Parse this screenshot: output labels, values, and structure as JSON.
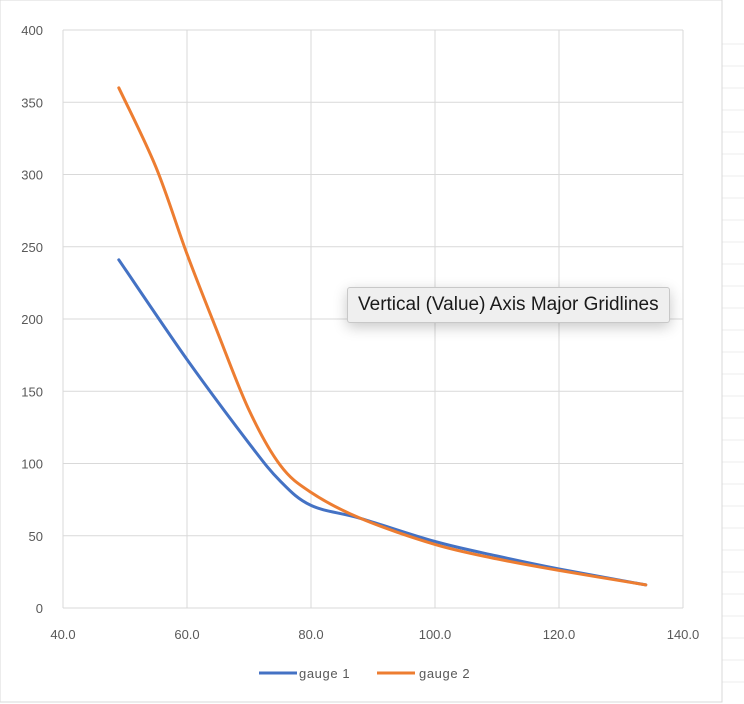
{
  "colors": {
    "series1": "#4472C4",
    "series2": "#ED7D31",
    "gridline": "#d9d9d9",
    "axis_text": "#595959"
  },
  "chart_data": {
    "type": "line",
    "title": "",
    "xlabel": "",
    "ylabel": "",
    "xlim": [
      40,
      140
    ],
    "ylim": [
      0,
      400
    ],
    "x_ticks": [
      40,
      60,
      80,
      100,
      120,
      140
    ],
    "x_tick_labels": [
      "40.0",
      "60.0",
      "80.0",
      "100.0",
      "120.0",
      "140.0"
    ],
    "y_ticks": [
      0,
      50,
      100,
      150,
      200,
      250,
      300,
      350,
      400
    ],
    "y_tick_labels": [
      "0",
      "50",
      "100",
      "150",
      "200",
      "250",
      "300",
      "350",
      "400"
    ],
    "grid": true,
    "legend_position": "bottom",
    "series": [
      {
        "name": "gauge 1",
        "color": "#4472C4",
        "x": [
          49,
          60,
          70,
          75,
          80,
          88,
          100,
          110,
          120,
          134
        ],
        "y": [
          241,
          172,
          114,
          88,
          71,
          62,
          46,
          36,
          27,
          16
        ]
      },
      {
        "name": "gauge 2",
        "color": "#ED7D31",
        "x": [
          49,
          55,
          60,
          65,
          70,
          75,
          80,
          88,
          100,
          110,
          120,
          134
        ],
        "y": [
          360,
          305,
          245,
          190,
          137,
          99,
          80,
          62,
          44,
          34,
          26,
          16
        ]
      }
    ]
  },
  "tooltip": {
    "text": "Vertical (Value) Axis Major Gridlines"
  }
}
